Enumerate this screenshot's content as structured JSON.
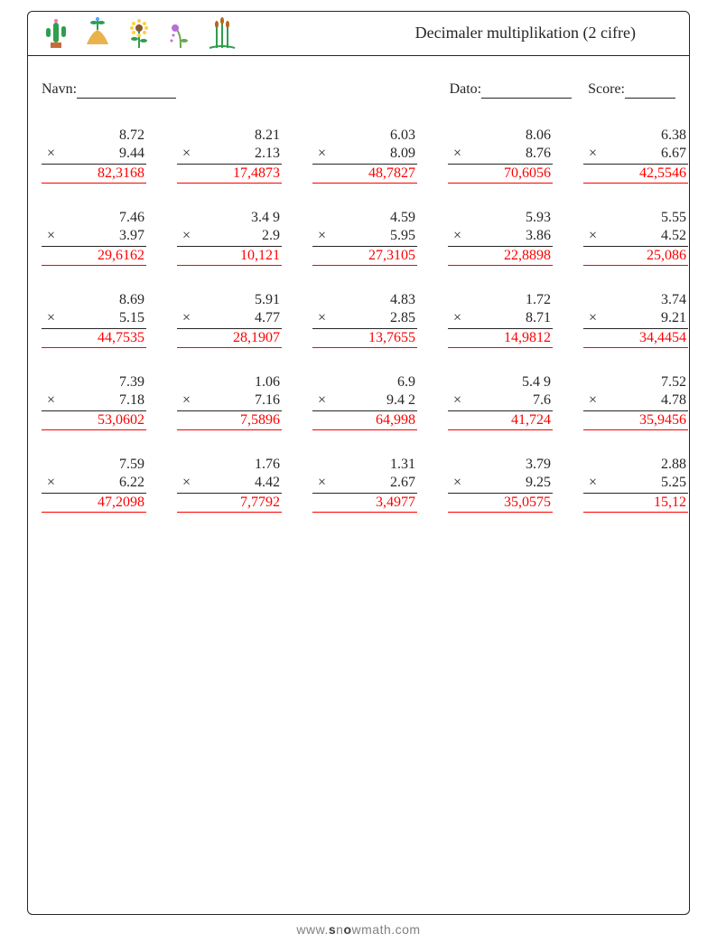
{
  "title": "Decimaler multiplikation (2 cifre)",
  "labels": {
    "name": "Navn:",
    "date": "Dato:",
    "score": "Score:"
  },
  "blanks": {
    "name_w": 110,
    "date_w": 100,
    "score_w": 56
  },
  "symbol": "×",
  "colors": {
    "text": "#262626",
    "answer": "#ff0000",
    "background": "#ffffff"
  },
  "font": {
    "family": "Comic Sans MS",
    "title_size_pt": 14,
    "body_size_pt": 12
  },
  "problems": [
    {
      "a": "8.72",
      "b": "9.44",
      "ans": "82,3168"
    },
    {
      "a": "8.21",
      "b": "2.13",
      "ans": "17,4873"
    },
    {
      "a": "6.03",
      "b": "8.09",
      "ans": "48,7827"
    },
    {
      "a": "8.06",
      "b": "8.76",
      "ans": "70,6056"
    },
    {
      "a": "6.38",
      "b": "6.67",
      "ans": "42,5546"
    },
    {
      "a": "7.46",
      "b": "3.97",
      "ans": "29,6162"
    },
    {
      "a": "3.4 9",
      "b": "2.9",
      "ans": "10,121"
    },
    {
      "a": "4.59",
      "b": "5.95",
      "ans": "27,3105"
    },
    {
      "a": "5.93",
      "b": "3.86",
      "ans": "22,8898"
    },
    {
      "a": "5.55",
      "b": "4.52",
      "ans": "25,086"
    },
    {
      "a": "8.69",
      "b": "5.15",
      "ans": "44,7535"
    },
    {
      "a": "5.91",
      "b": "4.77",
      "ans": "28,1907"
    },
    {
      "a": "4.83",
      "b": "2.85",
      "ans": "13,7655"
    },
    {
      "a": "1.72",
      "b": "8.71",
      "ans": "14,9812"
    },
    {
      "a": "3.74",
      "b": "9.21",
      "ans": "34,4454"
    },
    {
      "a": "7.39",
      "b": "7.18",
      "ans": "53,0602"
    },
    {
      "a": "1.06",
      "b": "7.16",
      "ans": "7,5896"
    },
    {
      "a": "6.9",
      "b": "9.4 2",
      "ans": "64,998"
    },
    {
      "a": "5.4 9",
      "b": "7.6",
      "ans": "41,724"
    },
    {
      "a": "7.52",
      "b": "4.78",
      "ans": "35,9456"
    },
    {
      "a": "7.59",
      "b": "6.22",
      "ans": "47,2098"
    },
    {
      "a": "1.76",
      "b": "4.42",
      "ans": "7,7792"
    },
    {
      "a": "1.31",
      "b": "2.67",
      "ans": "3,4977"
    },
    {
      "a": "3.79",
      "b": "9.25",
      "ans": "35,0575"
    },
    {
      "a": "2.88",
      "b": "5.25",
      "ans": "15,12"
    }
  ],
  "footer": {
    "pre": "www.",
    "mid_bold_1": "s",
    "mid": "n",
    "mid_bold_2": "o",
    "rest": "wmath.com"
  }
}
